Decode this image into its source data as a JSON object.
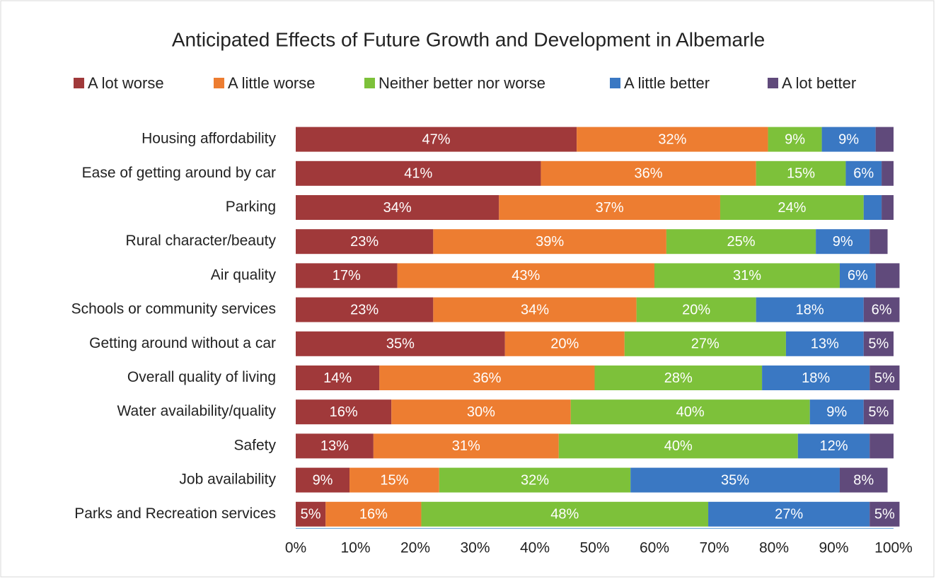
{
  "chart_data": {
    "type": "stacked-bar-horizontal",
    "title": "Anticipated Effects of Future Growth and Development in Albemarle",
    "categories": [
      "Housing affordability",
      "Ease of getting around by car",
      "Parking",
      "Rural character/beauty",
      "Air quality",
      "Schools or community services",
      "Getting around without a car",
      "Overall quality of living",
      "Water availability/quality",
      "Safety",
      "Job availability",
      "Parks and Recreation services"
    ],
    "series": [
      {
        "name": "A lot worse",
        "color": "#a0393a",
        "values": [
          47,
          41,
          34,
          23,
          17,
          23,
          35,
          14,
          16,
          13,
          9,
          5
        ],
        "value_labels": [
          "47%",
          "41%",
          "34%",
          "23%",
          "17%",
          "23%",
          "35%",
          "14%",
          "16%",
          "13%",
          "9%",
          "5%"
        ]
      },
      {
        "name": "A little worse",
        "color": "#ed7d31",
        "values": [
          32,
          36,
          37,
          39,
          43,
          34,
          20,
          36,
          30,
          31,
          15,
          16
        ],
        "value_labels": [
          "32%",
          "36%",
          "37%",
          "39%",
          "43%",
          "34%",
          "20%",
          "36%",
          "30%",
          "31%",
          "15%",
          "16%"
        ]
      },
      {
        "name": "Neither better nor worse",
        "color": "#7dc13a",
        "values": [
          9,
          15,
          24,
          25,
          31,
          20,
          27,
          28,
          40,
          40,
          32,
          48
        ],
        "value_labels": [
          "9%",
          "15%",
          "24%",
          "25%",
          "31%",
          "20%",
          "27%",
          "28%",
          "40%",
          "40%",
          "32%",
          "48%"
        ]
      },
      {
        "name": "A little better",
        "color": "#3a78c3",
        "values": [
          9,
          6,
          3,
          9,
          6,
          18,
          13,
          18,
          9,
          12,
          35,
          27
        ],
        "value_labels": [
          "9%",
          "6%",
          null,
          "9%",
          "6%",
          "18%",
          "13%",
          "18%",
          "9%",
          "12%",
          "35%",
          "27%"
        ]
      },
      {
        "name": "A lot better",
        "color": "#604a7b",
        "values": [
          3,
          2,
          2,
          3,
          4,
          6,
          5,
          5,
          5,
          4,
          8,
          5
        ],
        "value_labels": [
          null,
          null,
          null,
          null,
          null,
          "6%",
          "5%",
          "5%",
          "5%",
          null,
          "8%",
          "5%"
        ]
      }
    ],
    "xlim": [
      0,
      100
    ],
    "xticks": [
      {
        "value": 0,
        "label": "0%"
      },
      {
        "value": 10,
        "label": "10%"
      },
      {
        "value": 20,
        "label": "20%"
      },
      {
        "value": 30,
        "label": "30%"
      },
      {
        "value": 40,
        "label": "40%"
      },
      {
        "value": 50,
        "label": "50%"
      },
      {
        "value": 60,
        "label": "60%"
      },
      {
        "value": 70,
        "label": "70%"
      },
      {
        "value": 80,
        "label": "80%"
      },
      {
        "value": 90,
        "label": "90%"
      },
      {
        "value": 100,
        "label": "100%"
      }
    ]
  }
}
